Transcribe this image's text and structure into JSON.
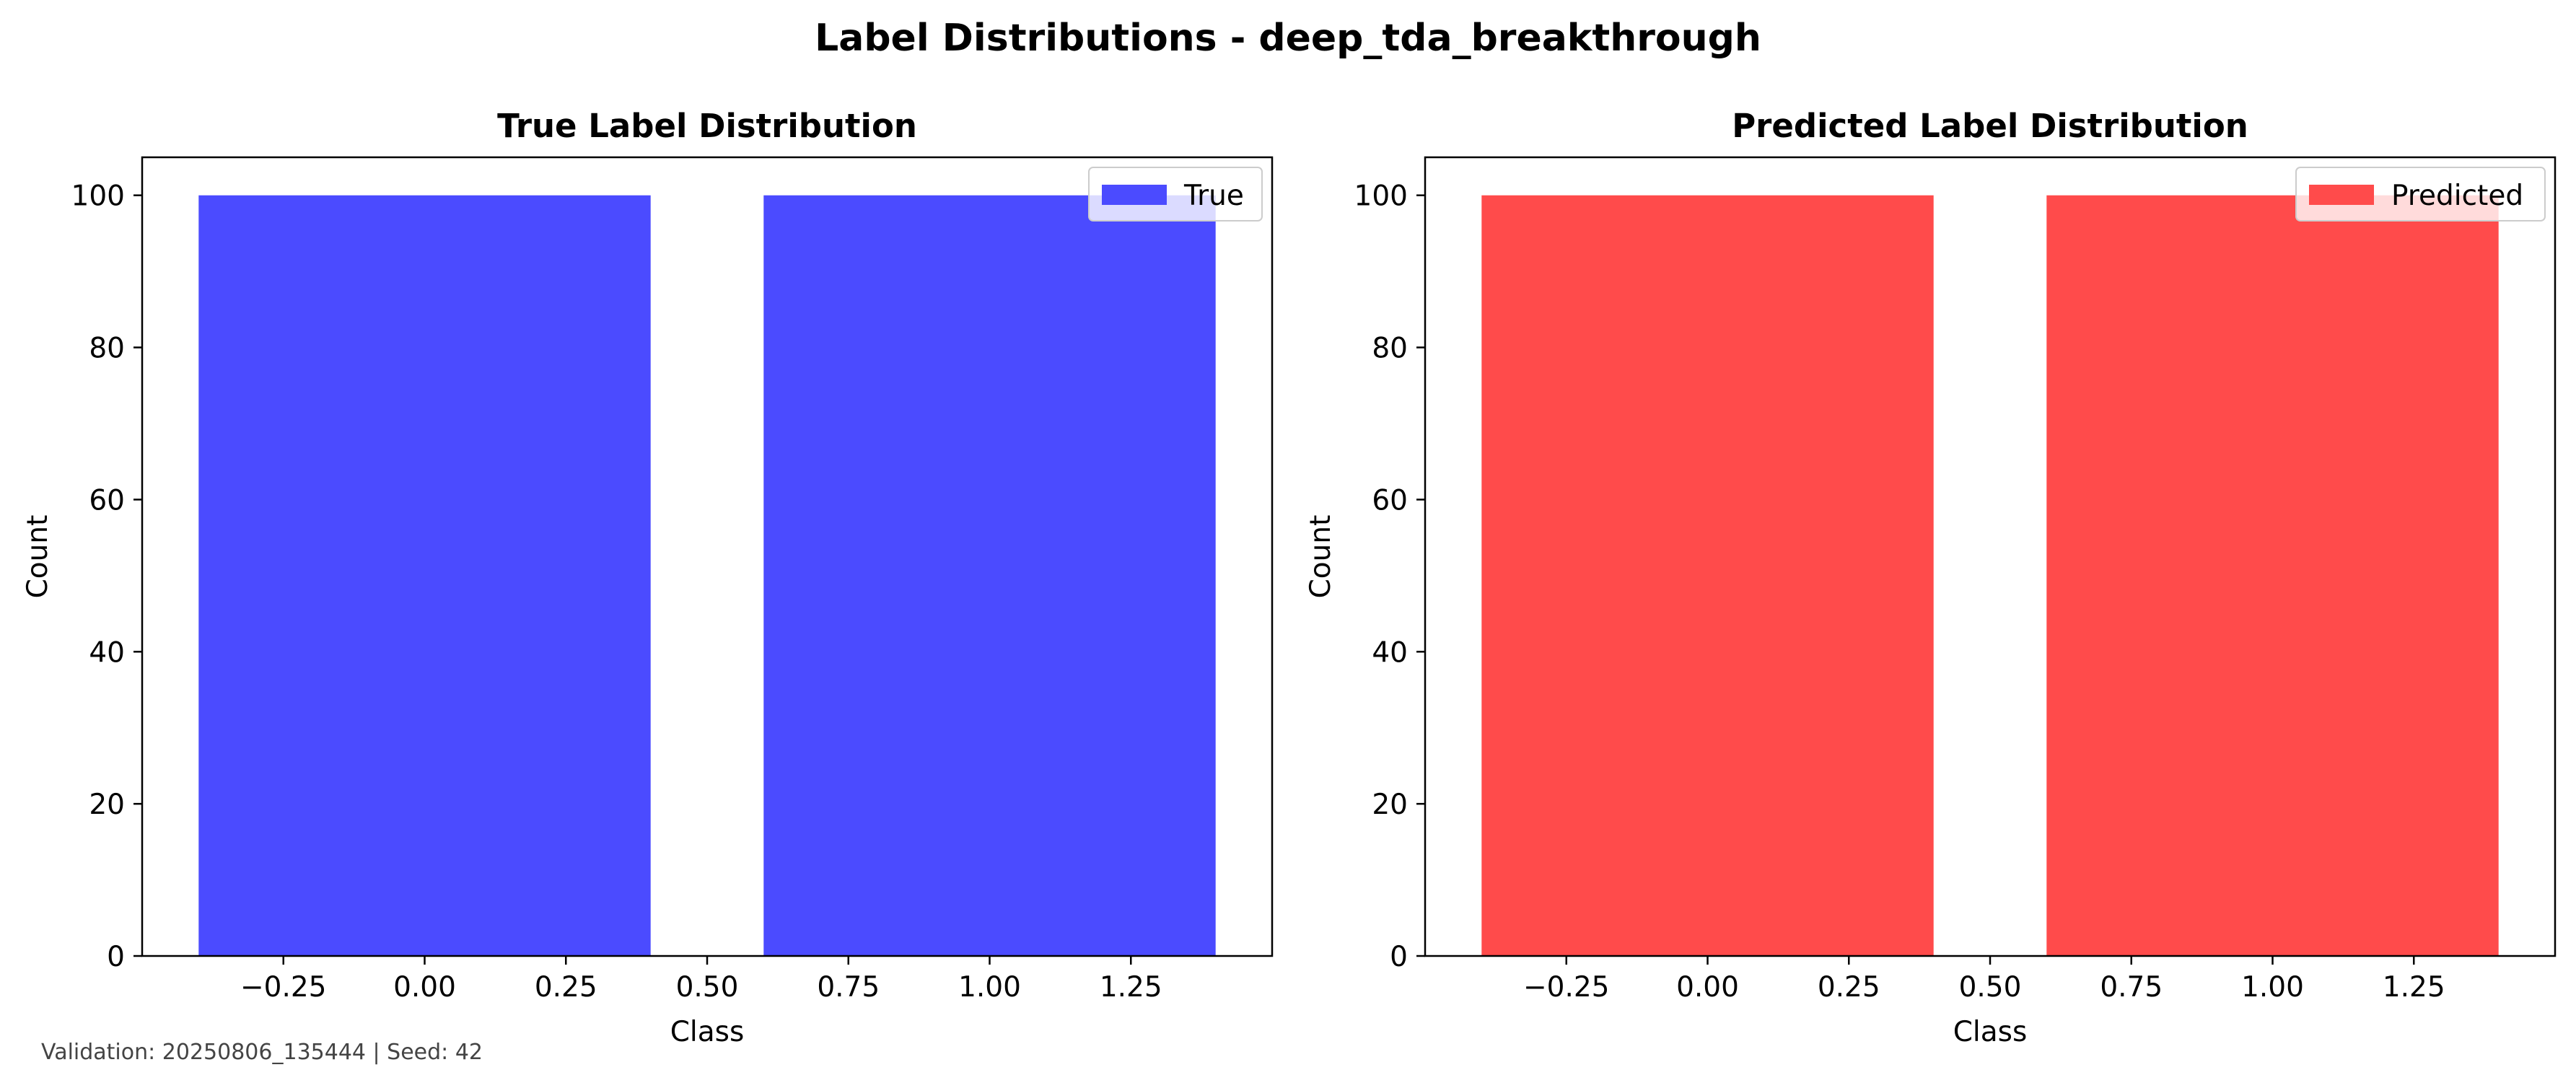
{
  "figure": {
    "suptitle": "Label Distributions - deep_tda_breakthrough",
    "footer": "Validation: 20250806_135444 | Seed: 42"
  },
  "chart_data": [
    {
      "type": "bar",
      "title": "True Label Distribution",
      "xlabel": "Class",
      "ylabel": "Count",
      "x": [
        0,
        1
      ],
      "values": [
        100,
        100
      ],
      "bar_width": 0.8,
      "xlim": [
        -0.5,
        1.5
      ],
      "ylim": [
        0,
        105
      ],
      "xticks": [
        -0.25,
        0.0,
        0.25,
        0.5,
        0.75,
        1.0,
        1.25
      ],
      "xtick_labels": [
        "−0.25",
        "0.00",
        "0.25",
        "0.50",
        "0.75",
        "1.00",
        "1.25"
      ],
      "yticks": [
        0,
        20,
        40,
        60,
        80,
        100
      ],
      "ytick_labels": [
        "0",
        "20",
        "40",
        "60",
        "80",
        "100"
      ],
      "series_name": "True",
      "color": "#4b4bff",
      "grid": false,
      "legend": "top-right"
    },
    {
      "type": "bar",
      "title": "Predicted Label Distribution",
      "xlabel": "Class",
      "ylabel": "Count",
      "x": [
        0,
        1
      ],
      "values": [
        100,
        100
      ],
      "bar_width": 0.8,
      "xlim": [
        -0.5,
        1.5
      ],
      "ylim": [
        0,
        105
      ],
      "xticks": [
        -0.25,
        0.0,
        0.25,
        0.5,
        0.75,
        1.0,
        1.25
      ],
      "xtick_labels": [
        "−0.25",
        "0.00",
        "0.25",
        "0.50",
        "0.75",
        "1.00",
        "1.25"
      ],
      "yticks": [
        0,
        20,
        40,
        60,
        80,
        100
      ],
      "ytick_labels": [
        "0",
        "20",
        "40",
        "60",
        "80",
        "100"
      ],
      "series_name": "Predicted",
      "color": "#ff4b4b",
      "grid": false,
      "legend": "top-right"
    }
  ]
}
